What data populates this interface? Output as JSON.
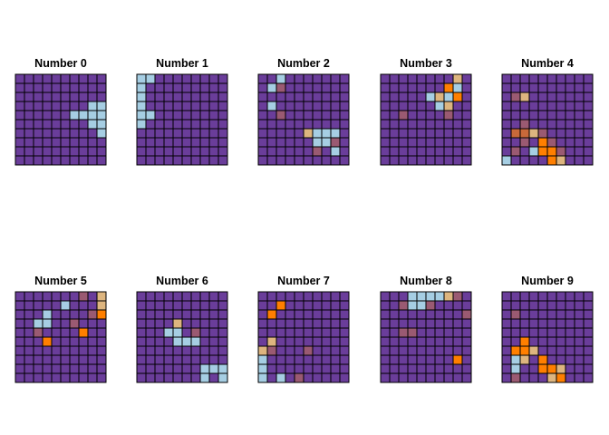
{
  "chart_data": {
    "type": "heatmap",
    "layout": {
      "rows": 2,
      "cols": 5
    },
    "grid_size": 10,
    "colors": {
      "background": "#6a3d9a",
      "levels": [
        "#6a3d9a",
        "#9a5a72",
        "#c8693a",
        "#ff7f00",
        "#ddb57f",
        "#a6cee3"
      ]
    },
    "panels": [
      {
        "title": "Number 0",
        "cells": [
          [
            4,
            9,
            5
          ],
          [
            4,
            8,
            5
          ],
          [
            3,
            9,
            5
          ],
          [
            3,
            8,
            5
          ],
          [
            4,
            6,
            5
          ],
          [
            4,
            7,
            5
          ],
          [
            5,
            8,
            5
          ],
          [
            5,
            9,
            5
          ],
          [
            6,
            9,
            5
          ]
        ]
      },
      {
        "title": "Number 1",
        "cells": [
          [
            0,
            0,
            5
          ],
          [
            0,
            1,
            5
          ],
          [
            1,
            0,
            5
          ],
          [
            2,
            0,
            5
          ],
          [
            3,
            0,
            5
          ],
          [
            4,
            0,
            5
          ],
          [
            4,
            1,
            5
          ],
          [
            5,
            0,
            5
          ]
        ]
      },
      {
        "title": "Number 2",
        "cells": [
          [
            0,
            2,
            5
          ],
          [
            1,
            1,
            5
          ],
          [
            1,
            2,
            1
          ],
          [
            3,
            1,
            5
          ],
          [
            4,
            2,
            1
          ],
          [
            6,
            5,
            4
          ],
          [
            6,
            6,
            5
          ],
          [
            6,
            7,
            5
          ],
          [
            6,
            8,
            5
          ],
          [
            7,
            6,
            5
          ],
          [
            7,
            7,
            5
          ],
          [
            7,
            8,
            1
          ],
          [
            8,
            6,
            1
          ],
          [
            8,
            8,
            5
          ]
        ]
      },
      {
        "title": "Number 3",
        "cells": [
          [
            0,
            8,
            4
          ],
          [
            1,
            7,
            3
          ],
          [
            1,
            8,
            5
          ],
          [
            2,
            5,
            5
          ],
          [
            2,
            6,
            4
          ],
          [
            2,
            7,
            5
          ],
          [
            2,
            8,
            3
          ],
          [
            3,
            6,
            5
          ],
          [
            3,
            7,
            4
          ],
          [
            4,
            7,
            1
          ],
          [
            4,
            2,
            1
          ]
        ]
      },
      {
        "title": "Number 4",
        "cells": [
          [
            2,
            1,
            1
          ],
          [
            2,
            2,
            4
          ],
          [
            5,
            2,
            1
          ],
          [
            6,
            1,
            2
          ],
          [
            6,
            2,
            2
          ],
          [
            6,
            3,
            4
          ],
          [
            6,
            4,
            1
          ],
          [
            7,
            2,
            1
          ],
          [
            7,
            4,
            3
          ],
          [
            7,
            5,
            1
          ],
          [
            8,
            1,
            1
          ],
          [
            8,
            3,
            5
          ],
          [
            8,
            4,
            3
          ],
          [
            8,
            5,
            3
          ],
          [
            8,
            6,
            1
          ],
          [
            9,
            0,
            5
          ],
          [
            9,
            5,
            3
          ],
          [
            9,
            6,
            4
          ]
        ]
      },
      {
        "title": "Number 5",
        "cells": [
          [
            0,
            7,
            1
          ],
          [
            0,
            9,
            4
          ],
          [
            1,
            5,
            5
          ],
          [
            1,
            9,
            4
          ],
          [
            2,
            3,
            5
          ],
          [
            2,
            8,
            1
          ],
          [
            2,
            9,
            3
          ],
          [
            3,
            2,
            5
          ],
          [
            3,
            3,
            5
          ],
          [
            3,
            6,
            1
          ],
          [
            4,
            2,
            1
          ],
          [
            4,
            7,
            3
          ],
          [
            5,
            3,
            3
          ]
        ]
      },
      {
        "title": "Number 6",
        "cells": [
          [
            3,
            4,
            4
          ],
          [
            4,
            3,
            5
          ],
          [
            4,
            4,
            5
          ],
          [
            4,
            6,
            1
          ],
          [
            5,
            4,
            5
          ],
          [
            5,
            5,
            5
          ],
          [
            5,
            6,
            5
          ],
          [
            8,
            7,
            5
          ],
          [
            8,
            8,
            5
          ],
          [
            8,
            9,
            5
          ],
          [
            9,
            7,
            5
          ],
          [
            9,
            9,
            5
          ]
        ]
      },
      {
        "title": "Number 7",
        "cells": [
          [
            1,
            2,
            3
          ],
          [
            2,
            1,
            3
          ],
          [
            5,
            1,
            4
          ],
          [
            6,
            0,
            4
          ],
          [
            6,
            1,
            1
          ],
          [
            6,
            5,
            1
          ],
          [
            7,
            0,
            5
          ],
          [
            8,
            0,
            5
          ],
          [
            9,
            0,
            5
          ],
          [
            9,
            2,
            5
          ],
          [
            9,
            4,
            1
          ]
        ]
      },
      {
        "title": "Number 8",
        "cells": [
          [
            0,
            3,
            5
          ],
          [
            0,
            4,
            5
          ],
          [
            0,
            5,
            5
          ],
          [
            0,
            6,
            5
          ],
          [
            0,
            7,
            4
          ],
          [
            0,
            8,
            1
          ],
          [
            1,
            2,
            1
          ],
          [
            1,
            3,
            5
          ],
          [
            1,
            4,
            5
          ],
          [
            1,
            5,
            1
          ],
          [
            2,
            9,
            1
          ],
          [
            4,
            2,
            1
          ],
          [
            4,
            3,
            1
          ],
          [
            7,
            8,
            3
          ]
        ]
      },
      {
        "title": "Number 9",
        "cells": [
          [
            2,
            1,
            1
          ],
          [
            5,
            2,
            3
          ],
          [
            6,
            1,
            3
          ],
          [
            6,
            2,
            3
          ],
          [
            6,
            3,
            4
          ],
          [
            7,
            1,
            5
          ],
          [
            7,
            2,
            4
          ],
          [
            7,
            4,
            3
          ],
          [
            8,
            1,
            5
          ],
          [
            8,
            4,
            3
          ],
          [
            8,
            5,
            3
          ],
          [
            8,
            6,
            4
          ],
          [
            9,
            1,
            1
          ],
          [
            9,
            5,
            4
          ],
          [
            9,
            6,
            3
          ]
        ]
      }
    ]
  }
}
